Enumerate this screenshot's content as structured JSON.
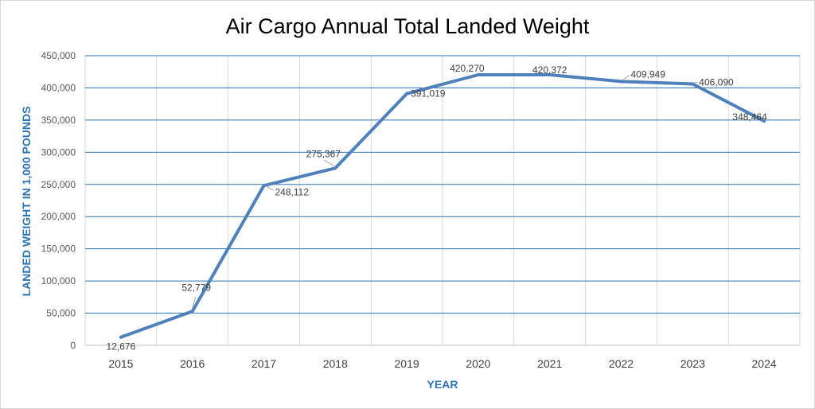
{
  "chart_data": {
    "type": "line",
    "title": "Air Cargo Annual Total Landed Weight",
    "xlabel": "YEAR",
    "ylabel": "LANDED WEIGHT IN 1,000 POUNDS",
    "categories": [
      "2015",
      "2016",
      "2017",
      "2018",
      "2019",
      "2020",
      "2021",
      "2022",
      "2023",
      "2024"
    ],
    "series": [
      {
        "name": "Landed Weight",
        "values": [
          12676,
          52779,
          248112,
          275367,
          391019,
          420270,
          420372,
          409949,
          406090,
          348464
        ],
        "labels": [
          "12,676",
          "52,779",
          "248,112",
          "275,367",
          "391,019",
          "420,270",
          "420,372",
          "409,949",
          "406,090",
          "348,464"
        ]
      }
    ],
    "ylim": [
      0,
      450000
    ],
    "yticks": [
      0,
      50000,
      100000,
      150000,
      200000,
      250000,
      300000,
      350000,
      400000,
      450000
    ],
    "ytick_labels": [
      "0",
      "50,000",
      "100,000",
      "150,000",
      "200,000",
      "250,000",
      "300,000",
      "350,000",
      "400,000",
      "450,000"
    ],
    "grid": true,
    "colors": {
      "line": "#4f81bd",
      "major_grid": "#2e75b6",
      "minor_grid": "#d9d9d9",
      "axis_title": "#2e75b6"
    }
  }
}
